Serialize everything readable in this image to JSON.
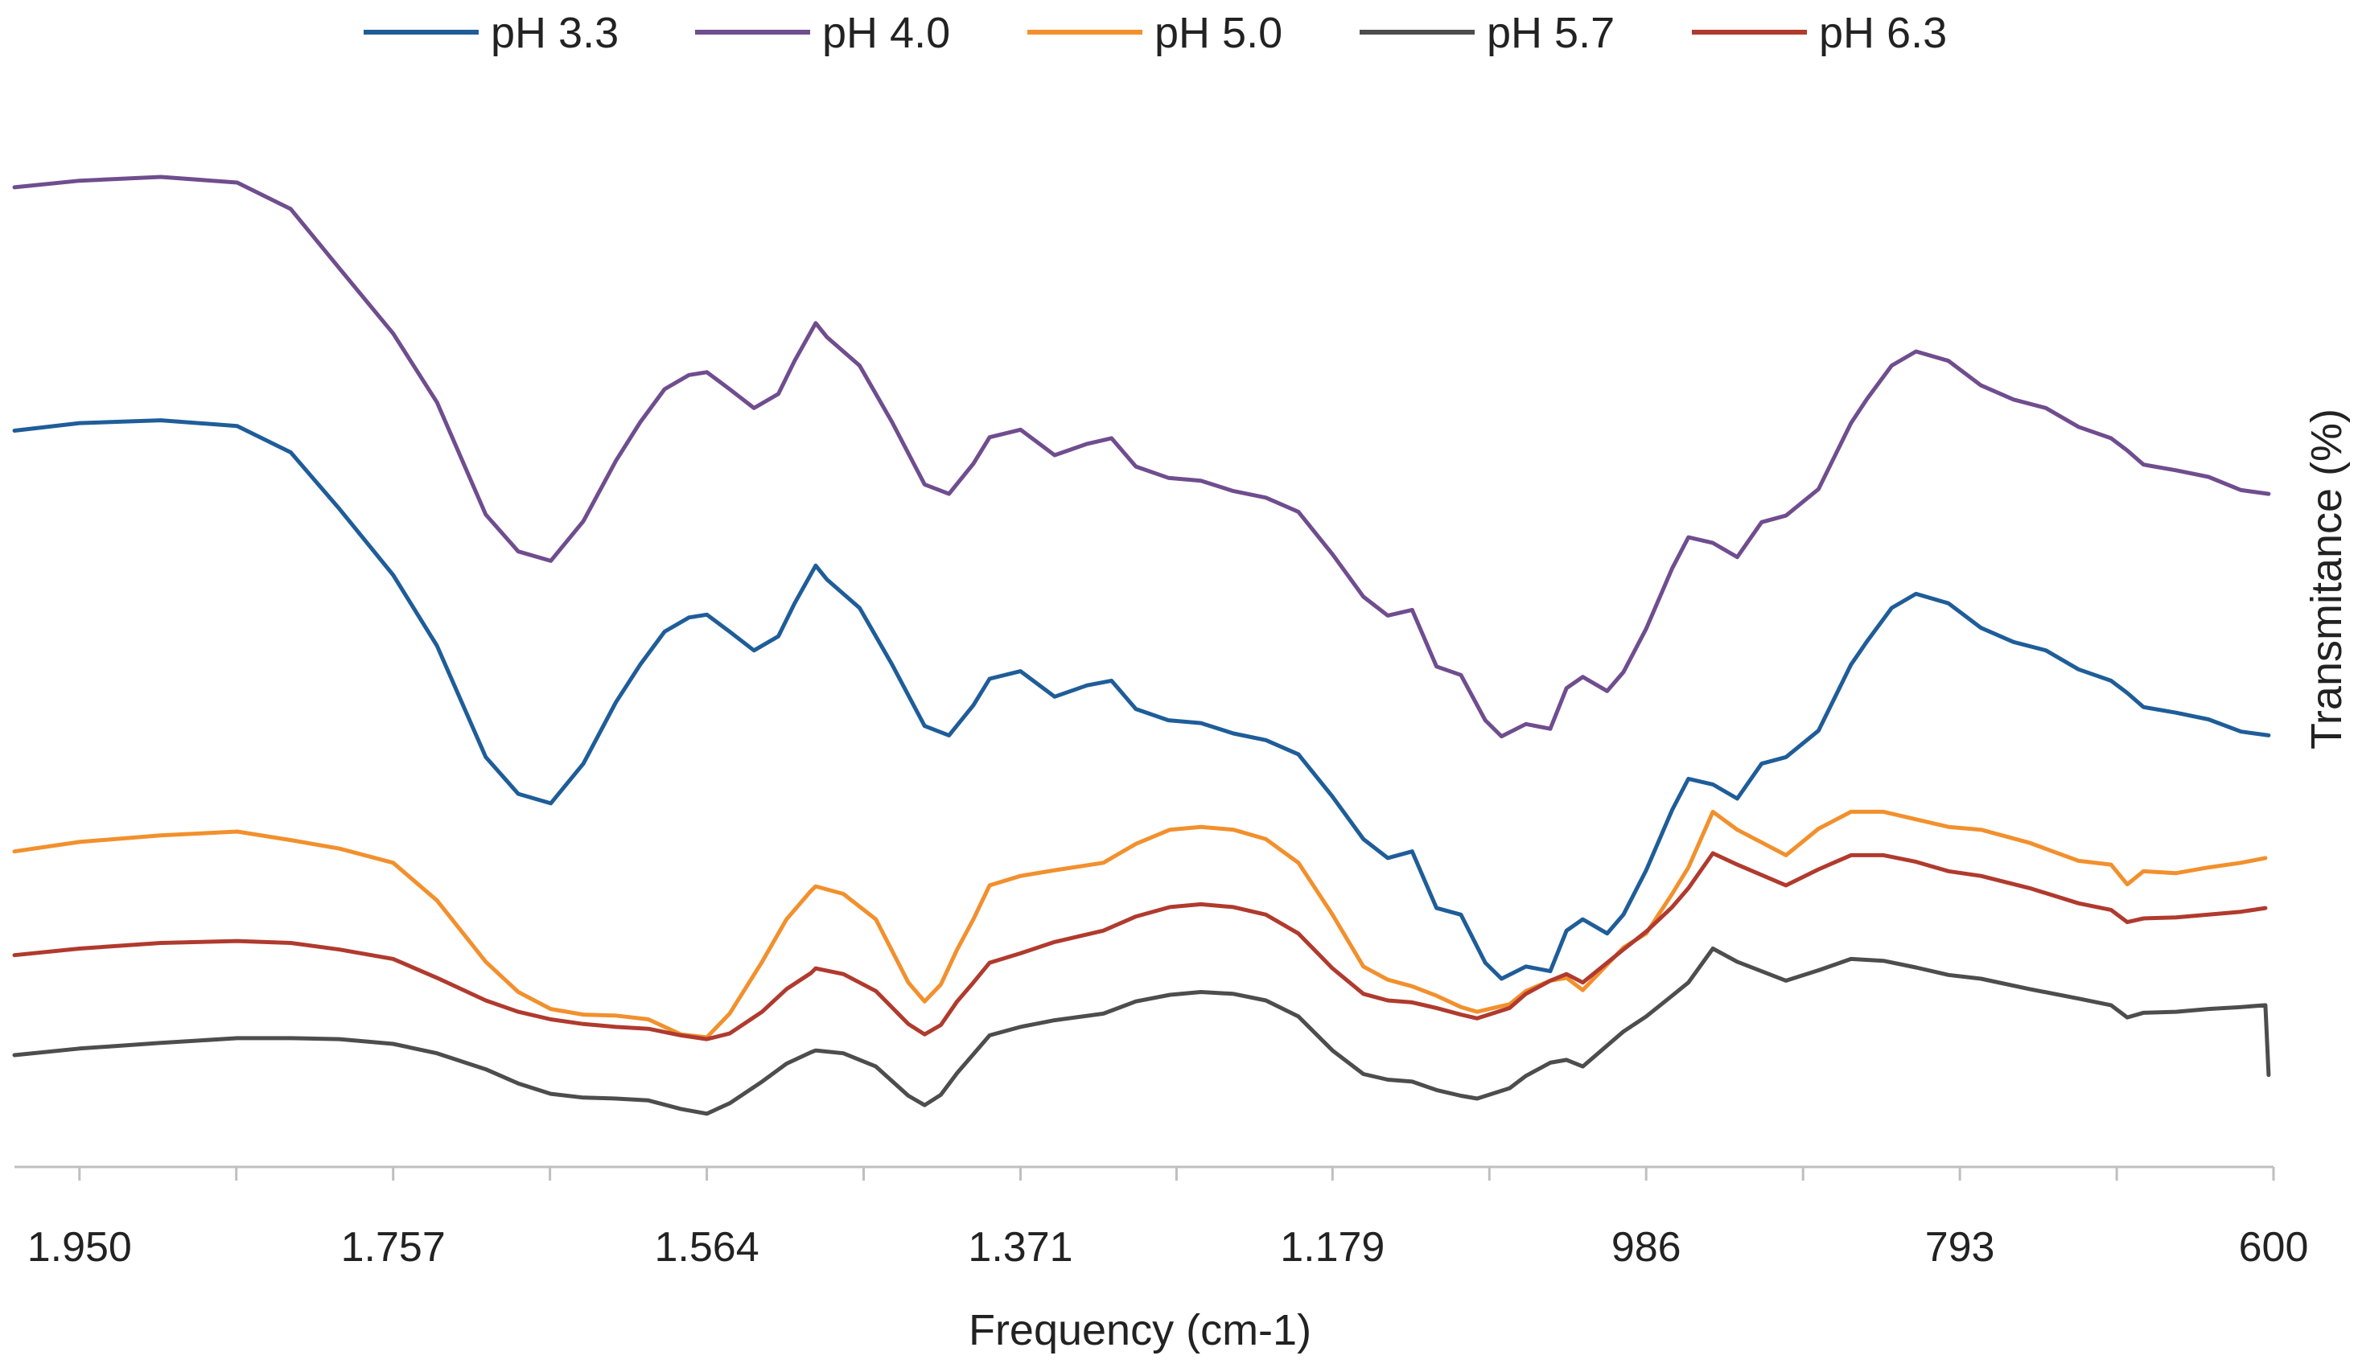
{
  "chart_data": {
    "type": "line",
    "title": "",
    "xlabel": "Frequency (cm-1)",
    "ylabel": "Transmitance (%)",
    "x_reversed": true,
    "xlim": [
      1990,
      600
    ],
    "ylim": [
      0,
      100
    ],
    "x_ticks": [
      1950,
      1757,
      1564,
      1371,
      1179,
      986,
      793,
      600
    ],
    "x_tick_labels": [
      "1.950",
      "1.757",
      "1.564",
      "1.371",
      "1.179",
      "986",
      "793",
      "600"
    ],
    "x_minor_ticks": [
      1853.5,
      1660.5,
      1467.5,
      1275,
      1082.5,
      889.5,
      696.5
    ],
    "legend_position": "top",
    "series": [
      {
        "name": "pH 3.3",
        "color": "#1f5d99",
        "x": [
          1990,
          1950,
          1900,
          1853,
          1820,
          1790,
          1757,
          1730,
          1700,
          1680,
          1660,
          1640,
          1620,
          1605,
          1590,
          1575,
          1564,
          1550,
          1535,
          1520,
          1510,
          1497,
          1490,
          1470,
          1450,
          1430,
          1415,
          1400,
          1390,
          1371,
          1350,
          1330,
          1315,
          1300,
          1280,
          1260,
          1240,
          1220,
          1200,
          1179,
          1160,
          1145,
          1130,
          1115,
          1100,
          1085,
          1075,
          1060,
          1045,
          1035,
          1025,
          1010,
          1000,
          986,
          970,
          960,
          945,
          930,
          915,
          900,
          880,
          860,
          850,
          835,
          820,
          800,
          780,
          760,
          740,
          720,
          700,
          690,
          680,
          660,
          640,
          620,
          603
        ],
        "y": [
          70.8,
          71.6,
          71.9,
          71.3,
          68.5,
          62.5,
          55.5,
          48,
          36.2,
          32.3,
          31.3,
          35.5,
          42,
          46,
          49.5,
          51,
          51.3,
          49.5,
          47.5,
          49,
          52.5,
          56.5,
          55,
          52,
          46,
          39.5,
          38.5,
          41.7,
          44.5,
          45.3,
          42.6,
          43.8,
          44.3,
          41.3,
          40.1,
          39.8,
          38.7,
          38,
          36.5,
          32,
          27.5,
          25.5,
          26.2,
          20.2,
          19.5,
          14.4,
          12.7,
          14,
          13.5,
          17.8,
          19,
          17.5,
          19.5,
          24.2,
          30.6,
          33.9,
          33.3,
          31.8,
          35.5,
          36.2,
          39,
          46,
          48.5,
          52,
          53.5,
          52.5,
          49.9,
          48.4,
          47.5,
          45.5,
          44.3,
          43,
          41.5,
          40.9,
          40.2,
          38.9,
          38.5
        ]
      },
      {
        "name": "pH 4.0",
        "color": "#6f4d8e",
        "x": [
          1990,
          1950,
          1900,
          1853,
          1820,
          1790,
          1757,
          1730,
          1700,
          1680,
          1660,
          1640,
          1620,
          1605,
          1590,
          1575,
          1564,
          1550,
          1535,
          1520,
          1510,
          1497,
          1490,
          1470,
          1450,
          1430,
          1415,
          1400,
          1390,
          1371,
          1350,
          1330,
          1315,
          1300,
          1280,
          1260,
          1240,
          1220,
          1200,
          1179,
          1160,
          1145,
          1130,
          1115,
          1100,
          1085,
          1075,
          1060,
          1045,
          1035,
          1025,
          1010,
          1000,
          986,
          970,
          960,
          945,
          930,
          915,
          900,
          880,
          860,
          850,
          835,
          820,
          800,
          780,
          760,
          740,
          720,
          700,
          690,
          680,
          660,
          640,
          620,
          603
        ],
        "y": [
          96.6,
          97.3,
          97.7,
          97.1,
          94.3,
          88,
          81.1,
          73.8,
          61.9,
          58,
          57,
          61.2,
          67.6,
          71.7,
          75.2,
          76.7,
          77,
          75.2,
          73.2,
          74.7,
          78.2,
          82.2,
          80.7,
          77.7,
          71.7,
          65.1,
          64.1,
          67.3,
          70.1,
          70.9,
          68.2,
          69.4,
          70,
          67,
          65.8,
          65.5,
          64.4,
          63.7,
          62.2,
          57.7,
          53.2,
          51.2,
          51.8,
          45.8,
          44.9,
          40.1,
          38.4,
          39.7,
          39.2,
          43.5,
          44.7,
          43.2,
          45.2,
          49.8,
          56.2,
          59.5,
          58.9,
          57.4,
          61.1,
          61.8,
          64.6,
          71.6,
          74.2,
          77.7,
          79.2,
          78.2,
          75.6,
          74.1,
          73.2,
          71.2,
          70,
          68.7,
          67.2,
          66.6,
          65.9,
          64.5,
          64.1
        ]
      },
      {
        "name": "pH 5.0",
        "color": "#f2902d",
        "x": [
          1990,
          1950,
          1900,
          1853,
          1820,
          1790,
          1757,
          1730,
          1700,
          1680,
          1660,
          1640,
          1620,
          1600,
          1580,
          1564,
          1550,
          1530,
          1515,
          1500,
          1497,
          1480,
          1460,
          1440,
          1430,
          1420,
          1410,
          1400,
          1390,
          1371,
          1350,
          1320,
          1300,
          1279,
          1260,
          1240,
          1220,
          1200,
          1179,
          1160,
          1145,
          1130,
          1115,
          1100,
          1090,
          1070,
          1060,
          1045,
          1035,
          1025,
          1000,
          986,
          970,
          960,
          945,
          930,
          900,
          880,
          860,
          840,
          820,
          800,
          780,
          750,
          720,
          700,
          690,
          680,
          660,
          640,
          620,
          605
        ],
        "y": [
          26.2,
          27.2,
          27.9,
          28.3,
          27.4,
          26.5,
          25,
          21,
          14.5,
          11.3,
          9.5,
          8.9,
          8.8,
          8.4,
          6.8,
          6.5,
          9,
          14.5,
          19,
          22,
          22.5,
          21.7,
          19,
          12.3,
          10.3,
          12.1,
          15.8,
          19,
          22.6,
          23.6,
          24.2,
          25,
          27,
          28.5,
          28.8,
          28.5,
          27.5,
          25,
          19.5,
          14,
          12.6,
          11.9,
          10.9,
          9.7,
          9.2,
          10,
          11.4,
          12.5,
          12.8,
          11.5,
          16,
          17.5,
          21.7,
          24.5,
          30.4,
          28.5,
          25.8,
          28.6,
          30.4,
          30.4,
          29.6,
          28.8,
          28.5,
          27.1,
          25.2,
          24.8,
          22.7,
          24.1,
          23.9,
          24.5,
          25,
          25.5
        ]
      },
      {
        "name": "pH 5.7",
        "color": "#4d4d4d",
        "x": [
          1990,
          1950,
          1900,
          1853,
          1820,
          1790,
          1757,
          1730,
          1700,
          1680,
          1660,
          1640,
          1620,
          1600,
          1580,
          1564,
          1550,
          1530,
          1515,
          1500,
          1497,
          1480,
          1460,
          1440,
          1430,
          1420,
          1410,
          1400,
          1390,
          1371,
          1350,
          1320,
          1300,
          1279,
          1260,
          1240,
          1220,
          1200,
          1179,
          1160,
          1145,
          1130,
          1115,
          1100,
          1090,
          1070,
          1060,
          1045,
          1035,
          1025,
          1000,
          986,
          970,
          960,
          945,
          930,
          900,
          880,
          860,
          840,
          820,
          800,
          780,
          750,
          720,
          700,
          690,
          680,
          660,
          640,
          620,
          605,
          603
        ],
        "y": [
          4.6,
          5.3,
          5.9,
          6.4,
          6.4,
          6.3,
          5.8,
          4.8,
          3.1,
          1.6,
          0.5,
          0.1,
          0,
          -0.2,
          -1.1,
          -1.6,
          -0.5,
          1.8,
          3.7,
          4.9,
          5.1,
          4.8,
          3.4,
          0.3,
          -0.7,
          0.4,
          2.7,
          4.7,
          6.7,
          7.6,
          8.3,
          9,
          10.3,
          11,
          11.3,
          11.1,
          10.4,
          8.7,
          5.1,
          2.6,
          2,
          1.8,
          0.9,
          0.3,
          0,
          1.1,
          2.4,
          3.8,
          4.1,
          3.4,
          7.1,
          8.7,
          10.9,
          12.3,
          15.9,
          14.5,
          12.5,
          13.6,
          14.8,
          14.6,
          13.9,
          13.1,
          12.7,
          11.6,
          10.6,
          9.9,
          8.6,
          9.1,
          9.2,
          9.5,
          9.7,
          9.9,
          2.5
        ]
      },
      {
        "name": "pH 6.3",
        "color": "#b03a2e",
        "x": [
          1990,
          1950,
          1900,
          1853,
          1820,
          1790,
          1757,
          1730,
          1700,
          1680,
          1660,
          1640,
          1620,
          1600,
          1580,
          1564,
          1550,
          1530,
          1515,
          1500,
          1497,
          1480,
          1460,
          1440,
          1430,
          1420,
          1410,
          1400,
          1390,
          1371,
          1350,
          1320,
          1300,
          1279,
          1260,
          1240,
          1220,
          1200,
          1179,
          1160,
          1145,
          1130,
          1115,
          1100,
          1090,
          1070,
          1060,
          1045,
          1035,
          1025,
          1000,
          986,
          970,
          960,
          945,
          930,
          900,
          880,
          860,
          840,
          820,
          800,
          780,
          750,
          720,
          700,
          690,
          680,
          660,
          640,
          620,
          605
        ],
        "y": [
          15.2,
          15.9,
          16.5,
          16.7,
          16.5,
          15.8,
          14.8,
          12.8,
          10.4,
          9.2,
          8.4,
          7.9,
          7.6,
          7.4,
          6.7,
          6.3,
          6.9,
          9.2,
          11.6,
          13.3,
          13.8,
          13.2,
          11.4,
          7.9,
          6.8,
          7.8,
          10.3,
          12.3,
          14.4,
          15.4,
          16.6,
          17.8,
          19.3,
          20.3,
          20.6,
          20.3,
          19.5,
          17.5,
          13.8,
          11.1,
          10.4,
          10.2,
          9.6,
          8.9,
          8.5,
          9.6,
          11.1,
          12.5,
          13.2,
          12.3,
          15.8,
          17.7,
          20.3,
          22.3,
          26,
          24.8,
          22.6,
          24.3,
          25.8,
          25.8,
          25.1,
          24.1,
          23.6,
          22.3,
          20.7,
          20,
          18.7,
          19.1,
          19.2,
          19.5,
          19.8,
          20.2
        ]
      }
    ]
  }
}
